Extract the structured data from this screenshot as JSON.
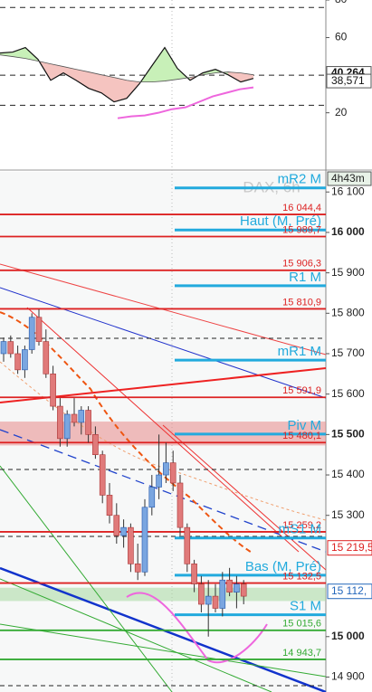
{
  "chart_data": [
    {
      "type": "line",
      "xlim": [
        0,
        360
      ],
      "ylim": [
        -10,
        80
      ],
      "yticks": [
        80,
        60,
        20
      ],
      "x": [
        0,
        14,
        28,
        42,
        56,
        70,
        84,
        98,
        112,
        126,
        140,
        154,
        168,
        182,
        196,
        210,
        224,
        238,
        252,
        266,
        280
      ],
      "series": [
        {
          "color": "#111111",
          "values": [
            51.8,
            52.3,
            54.7,
            48.4,
            37.3,
            41.2,
            37.3,
            33.0,
            30.6,
            25.8,
            27.7,
            35.4,
            45.1,
            54.7,
            43.6,
            37.3,
            41.2,
            43.1,
            40.2,
            36.4,
            38.3
          ]
        },
        {
          "color": "#555555",
          "values": [
            50.8,
            49.9,
            48.9,
            47.5,
            46.0,
            44.6,
            43.1,
            41.7,
            40.2,
            38.8,
            37.3,
            36.4,
            36.4,
            36.9,
            37.8,
            38.8,
            40.2,
            41.2,
            41.7,
            41.2,
            40.2
          ]
        },
        {
          "color": "#ee66dd",
          "x": [
            130,
            145,
            160,
            175,
            190,
            205,
            220,
            235,
            250,
            265,
            280
          ],
          "values": [
            17.1,
            18.1,
            18.6,
            20.0,
            21.9,
            22.9,
            25.8,
            28.7,
            30.6,
            32.5,
            33.5
          ]
        }
      ],
      "up_fill": "#c8f0b8",
      "down_fill": "#f5c4c0",
      "levels": [
        76,
        40,
        24
      ],
      "markers": [
        {
          "value": 40.264,
          "label": "40,264"
        },
        {
          "value": 38.571,
          "label": "38,571"
        }
      ]
    },
    {
      "type": "candlestick",
      "ylim": [
        14863,
        16152
      ],
      "yticks": [
        {
          "value": 16100,
          "label": "16 100"
        },
        {
          "value": 16000,
          "label": "16 000"
        },
        {
          "value": 15900,
          "label": "15 900"
        },
        {
          "value": 15800,
          "label": "15 800"
        },
        {
          "value": 15700,
          "label": "15 700"
        },
        {
          "value": 15600,
          "label": "15 600"
        },
        {
          "value": 15500,
          "label": "15 500"
        },
        {
          "value": 15400,
          "label": "15 400"
        },
        {
          "value": 15300,
          "label": "15 300"
        },
        {
          "value": 15000,
          "label": "15 000"
        },
        {
          "value": 14900,
          "label": "14 900"
        }
      ],
      "major_ticks": [
        16000,
        15500,
        15000
      ],
      "watermark": "DAX, 6h",
      "countdown": "4h43m",
      "up_color": "#7aa6e0",
      "down_color": "#e07a7a",
      "open": [
        15700,
        15730,
        15700,
        15660,
        15710,
        15790,
        15730,
        15650,
        15570,
        15490,
        15550,
        15530,
        15560,
        15500,
        15450,
        15350,
        15300,
        15250,
        15270,
        15180,
        15160,
        15320,
        15370,
        15400,
        15430,
        15380,
        15270,
        15180,
        15130,
        15080,
        15100,
        15070,
        15140,
        15110,
        15130
      ],
      "high": [
        15740,
        15745,
        15720,
        15720,
        15800,
        15810,
        15760,
        15670,
        15590,
        15560,
        15590,
        15570,
        15570,
        15520,
        15460,
        15380,
        15330,
        15290,
        15280,
        15230,
        15340,
        15400,
        15500,
        15480,
        15460,
        15400,
        15280,
        15190,
        15150,
        15140,
        15130,
        15160,
        15170,
        15150,
        15140
      ],
      "low": [
        15680,
        15690,
        15650,
        15640,
        15700,
        15720,
        15640,
        15560,
        15470,
        15470,
        15520,
        15500,
        15480,
        15440,
        15330,
        15280,
        15230,
        15220,
        15160,
        15140,
        15150,
        15300,
        15340,
        15380,
        15360,
        15250,
        15160,
        15110,
        15060,
        15000,
        15060,
        15050,
        15100,
        15070,
        15080
      ],
      "close": [
        15730,
        15700,
        15660,
        15710,
        15790,
        15730,
        15650,
        15570,
        15490,
        15550,
        15530,
        15560,
        15500,
        15450,
        15350,
        15300,
        15250,
        15270,
        15180,
        15160,
        15320,
        15370,
        15400,
        15430,
        15380,
        15270,
        15180,
        15130,
        15080,
        15100,
        15070,
        15140,
        15110,
        15130,
        15100
      ],
      "bands": [
        {
          "from": 15473,
          "to": 15532,
          "color": "#e88888"
        },
        {
          "from": 15088,
          "to": 15121,
          "color": "#a8d8a0"
        }
      ],
      "levels": [
        {
          "value": 16110,
          "label": "mR2 M",
          "color": "#22aadd",
          "style": "short"
        },
        {
          "value": 16044.4,
          "label": "16 044,4",
          "color": "#dd2222",
          "style": "full"
        },
        {
          "value": 16006,
          "label": "Haut (M, Pré)",
          "color": "#22aadd",
          "style": "short"
        },
        {
          "value": 15989.7,
          "label": "15 989,7",
          "color": "#dd2222",
          "style": "full"
        },
        {
          "value": 15906.3,
          "label": "15 906,3",
          "color": "#dd2222",
          "style": "full"
        },
        {
          "value": 15868,
          "label": "R1 M",
          "color": "#22aadd",
          "style": "short"
        },
        {
          "value": 15810.9,
          "label": "15 810,9",
          "color": "#dd2222",
          "style": "full"
        },
        {
          "value": 15684,
          "label": "mR1 M",
          "color": "#22aadd",
          "style": "short"
        },
        {
          "value": 15591.9,
          "label": "15 591,9",
          "color": "#dd2222",
          "style": "full"
        },
        {
          "value": 15501,
          "label": "Piv M",
          "color": "#22aadd",
          "style": "short"
        },
        {
          "value": 15480.1,
          "label": "15 480,1",
          "color": "#dd2222",
          "style": "full"
        },
        {
          "value": 15259.2,
          "label": "15 259,2",
          "color": "#dd2222",
          "style": "full"
        },
        {
          "value": 15244,
          "label": "mS1 M",
          "color": "#22aadd",
          "style": "short"
        },
        {
          "value": 15152,
          "label": "Bas (M, Pré)",
          "color": "#22aadd",
          "style": "short"
        },
        {
          "value": 15132.5,
          "label": "15 132,5",
          "color": "#dd2222",
          "style": "full"
        },
        {
          "value": 15054,
          "label": "S1 M",
          "color": "#22aadd",
          "style": "short"
        },
        {
          "value": 15015.6,
          "label": "15 015,6",
          "color": "#33aa33",
          "style": "full"
        },
        {
          "value": 14943.7,
          "label": "14 943,7",
          "color": "#33aa33",
          "style": "full"
        }
      ],
      "markers": [
        {
          "value": 15219.5,
          "label": "15 219,5",
          "color": "#dd2222"
        },
        {
          "value": 15112,
          "label": "15 112,",
          "color": "#2266bb"
        }
      ]
    }
  ]
}
